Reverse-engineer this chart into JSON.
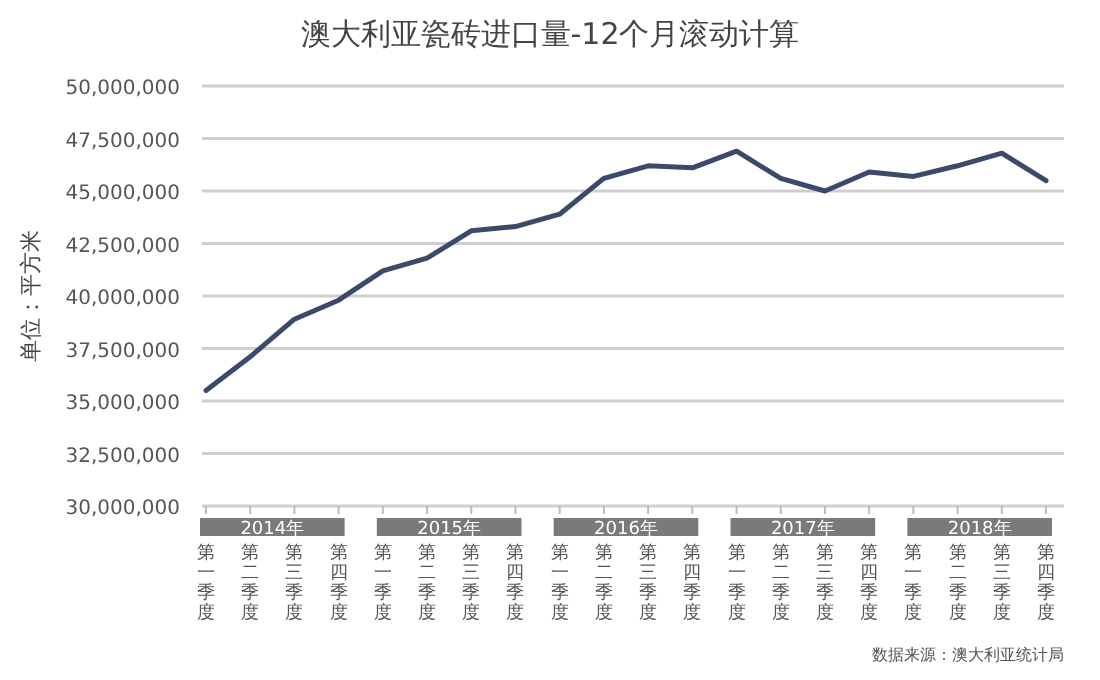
{
  "chart_data": {
    "type": "line",
    "title": "澳大利亚瓷砖进口量-12个月滚动计算",
    "ylabel": "单位：平方米",
    "categories": [
      "第一季度",
      "第二季度",
      "第三季度",
      "第四季度",
      "第一季度",
      "第二季度",
      "第三季度",
      "第四季度",
      "第一季度",
      "第二季度",
      "第三季度",
      "第四季度",
      "第一季度",
      "第二季度",
      "第三季度",
      "第四季度",
      "第一季度",
      "第二季度",
      "第三季度",
      "第四季度"
    ],
    "series": [
      {
        "color": "#3b4a6b",
        "values": [
          35500000,
          37100000,
          38900000,
          39800000,
          41200000,
          41800000,
          43100000,
          43300000,
          43900000,
          45600000,
          46200000,
          46100000,
          46900000,
          45600000,
          45000000,
          45900000,
          45700000,
          46200000,
          46800000,
          45500000
        ]
      }
    ],
    "ylim": [
      30000000,
      50000000
    ],
    "yticks": [
      {
        "value": 30000000,
        "label": "30,000,000"
      },
      {
        "value": 32500000,
        "label": "32,500,000"
      },
      {
        "value": 35000000,
        "label": "35,000,000"
      },
      {
        "value": 37500000,
        "label": "37,500,000"
      },
      {
        "value": 40000000,
        "label": "40,000,000"
      },
      {
        "value": 42500000,
        "label": "42,500,000"
      },
      {
        "value": 45000000,
        "label": "45,000,000"
      },
      {
        "value": 47500000,
        "label": "47,500,000"
      },
      {
        "value": 50000000,
        "label": "50,000,000"
      }
    ],
    "grid": "y",
    "marker": "none",
    "line_style": "solid",
    "annotations": [
      "2014年",
      "2015年",
      "2016年",
      "2017年",
      "2018年",
      "数据来源：澳大利亚统计局"
    ]
  }
}
